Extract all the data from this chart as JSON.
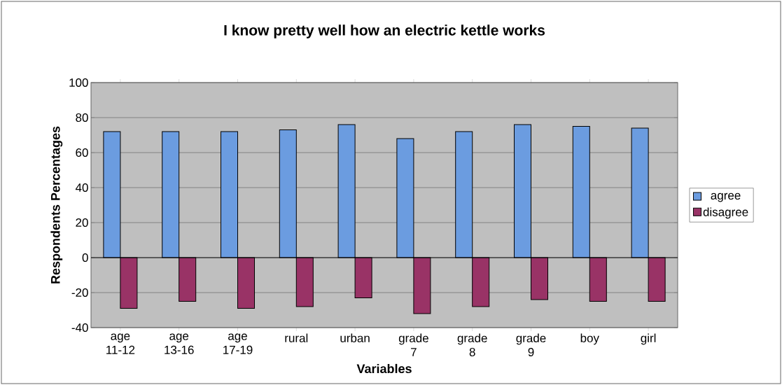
{
  "chart_data": {
    "type": "bar",
    "title": "I know pretty well how an electric kettle works",
    "xlabel": "Variables",
    "ylabel": "Respondents Percentages",
    "categories": [
      "age 11-12",
      "age 13-16",
      "age 17-19",
      "rural",
      "urban",
      "grade 7",
      "grade 8",
      "grade 9",
      "boy",
      "girl"
    ],
    "series": [
      {
        "name": "agree",
        "color": "#6b9ce0",
        "values": [
          72,
          72,
          72,
          73,
          76,
          68,
          72,
          76,
          75,
          74
        ]
      },
      {
        "name": "disagree",
        "color": "#993366",
        "values": [
          -29,
          -25,
          -29,
          -28,
          -23,
          -32,
          -28,
          -24,
          -25,
          -25
        ]
      }
    ],
    "ylim": [
      -40,
      100
    ],
    "yticks": [
      -40,
      -20,
      0,
      20,
      40,
      60,
      80,
      100
    ],
    "grid": "y",
    "legend": "right"
  }
}
